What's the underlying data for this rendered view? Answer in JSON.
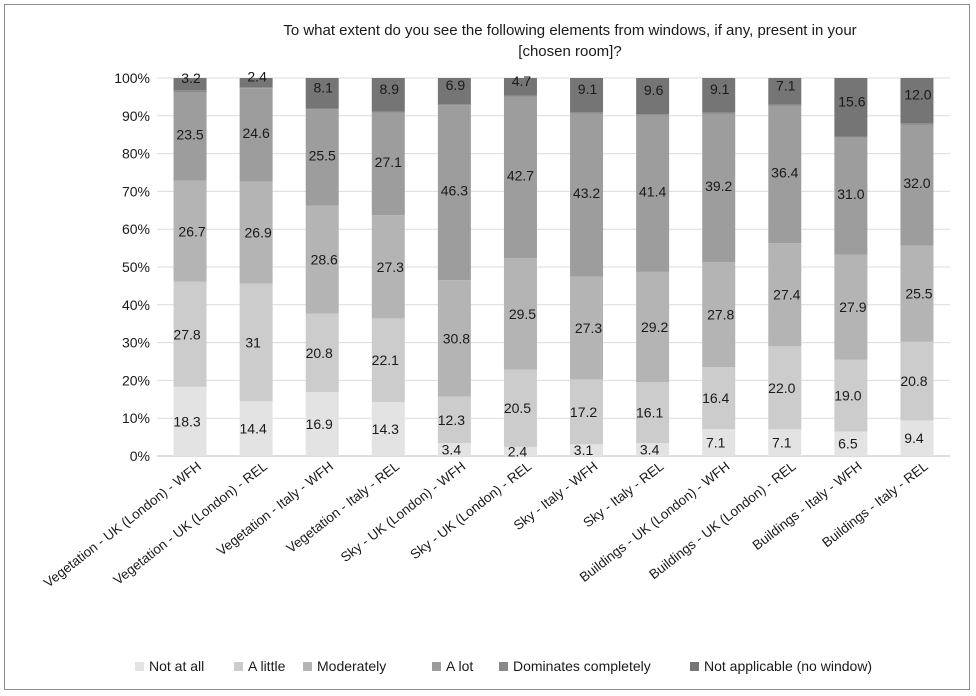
{
  "chart_data": {
    "type": "bar",
    "stacked": "percent",
    "title_lines": [
      "To what extent do you see the following elements from windows, if any, present in your",
      "[chosen room]?"
    ],
    "categories": [
      "Vegetation - UK (London) - WFH",
      "Vegetation - UK (London) - REL",
      "Vegetation - Italy - WFH",
      "Vegetation - Italy - REL",
      "Sky - UK (London) - WFH",
      "Sky - UK (London) - REL",
      "Sky - Italy - WFH",
      "Sky - Italy - REL",
      "Buildings - UK (London) - WFH",
      "Buildings - UK (London) - REL",
      "Buildings - Italy - WFH",
      "Buildings - Italy - REL"
    ],
    "y_ticks": [
      "0%",
      "10%",
      "20%",
      "30%",
      "40%",
      "50%",
      "60%",
      "70%",
      "80%",
      "90%",
      "100%"
    ],
    "ylim": [
      0,
      100
    ],
    "grid": true,
    "legend_position": "bottom",
    "series": [
      {
        "name": "Not at all",
        "color": "#e3e3e3",
        "values": [
          18.3,
          14.4,
          16.9,
          14.3,
          3.4,
          2.4,
          3.1,
          3.4,
          7.1,
          7.1,
          6.5,
          9.4
        ],
        "labels": [
          "18.3",
          "14.4",
          "16.9",
          "14.3",
          "3.4",
          "2.4",
          "3.1",
          "3.4",
          "7.1",
          "7.1",
          "6.5",
          "9.4"
        ]
      },
      {
        "name": "A little",
        "color": "#cccccc",
        "values": [
          27.8,
          31,
          20.8,
          22.1,
          12.3,
          20.5,
          17.2,
          16.1,
          16.4,
          22.0,
          19.0,
          20.8
        ],
        "labels": [
          "27.8",
          "31",
          "20.8",
          "22.1",
          "12.3",
          "20.5",
          "17.2",
          "16.1",
          "16.4",
          "22.0",
          "19.0",
          "20.8"
        ]
      },
      {
        "name": "Moderately",
        "color": "#b4b4b4",
        "values": [
          26.7,
          26.9,
          28.6,
          27.3,
          30.8,
          29.5,
          27.3,
          29.2,
          27.8,
          27.4,
          27.9,
          25.5
        ],
        "labels": [
          "26.7",
          "26.9",
          "28.6",
          "27.3",
          "30.8",
          "29.5",
          "27.3",
          "29.2",
          "27.8",
          "27.4",
          "27.9",
          "25.5"
        ]
      },
      {
        "name": "A lot",
        "color": "#9d9d9d",
        "values": [
          23.5,
          24.6,
          25.5,
          27.1,
          46.3,
          42.7,
          43.2,
          41.4,
          39.2,
          36.4,
          31.0,
          32.0
        ],
        "labels": [
          "23.5",
          "24.6",
          "25.5",
          "27.1",
          "46.3",
          "42.7",
          "43.2",
          "41.4",
          "39.2",
          "36.4",
          "31.0",
          "32.0"
        ]
      },
      {
        "name": "Dominates completely",
        "color": "#888888",
        "values": [
          0.5,
          0.3,
          0.2,
          0.3,
          0.3,
          0.3,
          0.3,
          0.3,
          0.4,
          0.3,
          0.2,
          0.3
        ],
        "labels": [
          "",
          "",
          "",
          "",
          "",
          "",
          "",
          "",
          "",
          "",
          "",
          ""
        ]
      },
      {
        "name": "Not applicable (no window)",
        "color": "#757575",
        "values": [
          3.2,
          2.4,
          8.1,
          8.9,
          6.9,
          4.7,
          9.1,
          9.6,
          9.1,
          7.1,
          15.6,
          12.0
        ],
        "labels": [
          "3.2",
          "2.4",
          "8.1",
          "8.9",
          "6.9",
          "4.7",
          "9.1",
          "9.6",
          "9.1",
          "7.1",
          "15.6",
          "12.0"
        ]
      }
    ]
  }
}
